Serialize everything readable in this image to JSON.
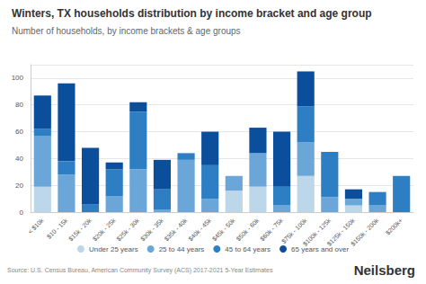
{
  "chart_data": {
    "type": "bar",
    "title": "Winters, TX households distribution by income bracket and age group",
    "subtitle": "Number of households, by income brackets & age groups",
    "source": "Source: U.S. Census Bureau, American Community Survey (ACS) 2017-2021 5-Year Estimates",
    "logo": "Neilsberg",
    "categories": [
      "< $10k",
      "$10 - 15k",
      "$15k - 20k",
      "$20k - 25k",
      "$25k - 30k",
      "$30k - 35k",
      "$35k - 40k",
      "$40k - 45k",
      "$45k - 50k",
      "$50k - 60k",
      "$60k - 75k",
      "$75k - 100k",
      "$100k - 125k",
      "$125k - 150k",
      "$150k - 200k",
      "$200k+"
    ],
    "series": [
      {
        "name": "Under 25 years",
        "color": "#bcd6ea",
        "values": [
          19,
          0,
          0,
          0,
          0,
          0,
          0,
          0,
          16,
          19,
          0,
          27,
          0,
          5,
          0,
          0
        ]
      },
      {
        "name": "25 to 44 years",
        "color": "#6aa6d8",
        "values": [
          38,
          28,
          0,
          12,
          32,
          2,
          39,
          10,
          11,
          25,
          5,
          25,
          11,
          5,
          5,
          0
        ]
      },
      {
        "name": "45 to 64 years",
        "color": "#2e7ec4",
        "values": [
          5,
          10,
          6,
          20,
          43,
          15,
          5,
          25,
          0,
          0,
          14,
          27,
          34,
          0,
          10,
          27
        ]
      },
      {
        "name": "65 years and over",
        "color": "#0b4f9c",
        "values": [
          25,
          58,
          42,
          5,
          7,
          22,
          0,
          25,
          0,
          19,
          41,
          26,
          0,
          7,
          0,
          0
        ]
      }
    ],
    "ylim": [
      0,
      110
    ],
    "yticks": [
      0,
      20,
      40,
      60,
      80,
      100
    ],
    "stacked": true,
    "grid": true,
    "legend": "bottom"
  }
}
